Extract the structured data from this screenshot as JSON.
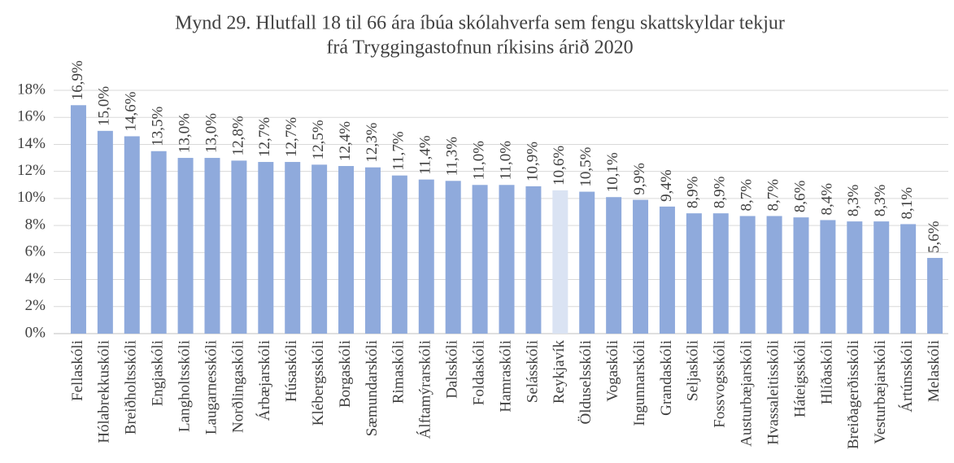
{
  "chart_data": {
    "type": "bar",
    "title": [
      "Mynd 29. Hlutfall 18 til 66 ára íbúa skólahverfa sem fengu skattskyldar tekjur",
      "frá Tryggingastofnun ríkisins árið 2020"
    ],
    "categories": [
      "Fellaskóli",
      "Hólabrekkuskóli",
      "Breiðholtsskóli",
      "Engjaskóli",
      "Langholtsskóli",
      "Laugarnesskóli",
      "Norðlingaskóli",
      "Árbæjarskóli",
      "Húsaskóli",
      "Klébergsskóli",
      "Borgaskóli",
      "Sæmundarskóli",
      "Rimaskóli",
      "Álftamýrarskóli",
      "Dalsskóli",
      "Foldaskóli",
      "Hamraskóli",
      "Selásskóli",
      "Reykjavík",
      "Ölduselsskóli",
      "Vogaskóli",
      "Ingunnarskóli",
      "Grandaskóli",
      "Seljaskóli",
      "Fossvogsskóli",
      "Austurbæjarskóli",
      "Hvassaleitisskóli",
      "Háteigsskóli",
      "Hlíðaskóli",
      "Breiðagerðisskóli",
      "Vesturbæjarskóli",
      "Ártúnsskóli",
      "Melaskóli"
    ],
    "values": [
      16.9,
      15.0,
      14.6,
      13.5,
      13.0,
      13.0,
      12.8,
      12.7,
      12.7,
      12.5,
      12.4,
      12.3,
      11.7,
      11.4,
      11.3,
      11.0,
      11.0,
      10.9,
      10.6,
      10.5,
      10.1,
      9.9,
      9.4,
      8.9,
      8.9,
      8.7,
      8.7,
      8.6,
      8.4,
      8.3,
      8.3,
      8.1,
      5.6
    ],
    "value_labels": [
      "16,9%",
      "15,0%",
      "14,6%",
      "13,5%",
      "13,0%",
      "13,0%",
      "12,8%",
      "12,7%",
      "12,7%",
      "12,5%",
      "12,4%",
      "12,3%",
      "11,7%",
      "11,4%",
      "11,3%",
      "11,0%",
      "11,0%",
      "10,9%",
      "10,6%",
      "10,5%",
      "10,1%",
      "9,9%",
      "9,4%",
      "8,9%",
      "8,9%",
      "8,7%",
      "8,7%",
      "8,6%",
      "8,4%",
      "8,3%",
      "8,3%",
      "8,1%",
      "5,6%"
    ],
    "colors": [
      "#8faadc",
      "#8faadc",
      "#8faadc",
      "#8faadc",
      "#8faadc",
      "#8faadc",
      "#8faadc",
      "#8faadc",
      "#8faadc",
      "#8faadc",
      "#8faadc",
      "#8faadc",
      "#8faadc",
      "#8faadc",
      "#8faadc",
      "#8faadc",
      "#8faadc",
      "#8faadc",
      "#dae3f3",
      "#8faadc",
      "#8faadc",
      "#8faadc",
      "#8faadc",
      "#8faadc",
      "#8faadc",
      "#8faadc",
      "#8faadc",
      "#8faadc",
      "#8faadc",
      "#8faadc",
      "#8faadc",
      "#8faadc",
      "#8faadc"
    ],
    "ylim": [
      0,
      18
    ],
    "yticks": [
      {
        "value": 0,
        "label": "0%"
      },
      {
        "value": 2,
        "label": "2%"
      },
      {
        "value": 4,
        "label": "4%"
      },
      {
        "value": 6,
        "label": "6%"
      },
      {
        "value": 8,
        "label": "8%"
      },
      {
        "value": 10,
        "label": "10%"
      },
      {
        "value": 12,
        "label": "12%"
      },
      {
        "value": 14,
        "label": "14%"
      },
      {
        "value": 16,
        "label": "16%"
      },
      {
        "value": 18,
        "label": "18%"
      }
    ],
    "grid": true
  }
}
